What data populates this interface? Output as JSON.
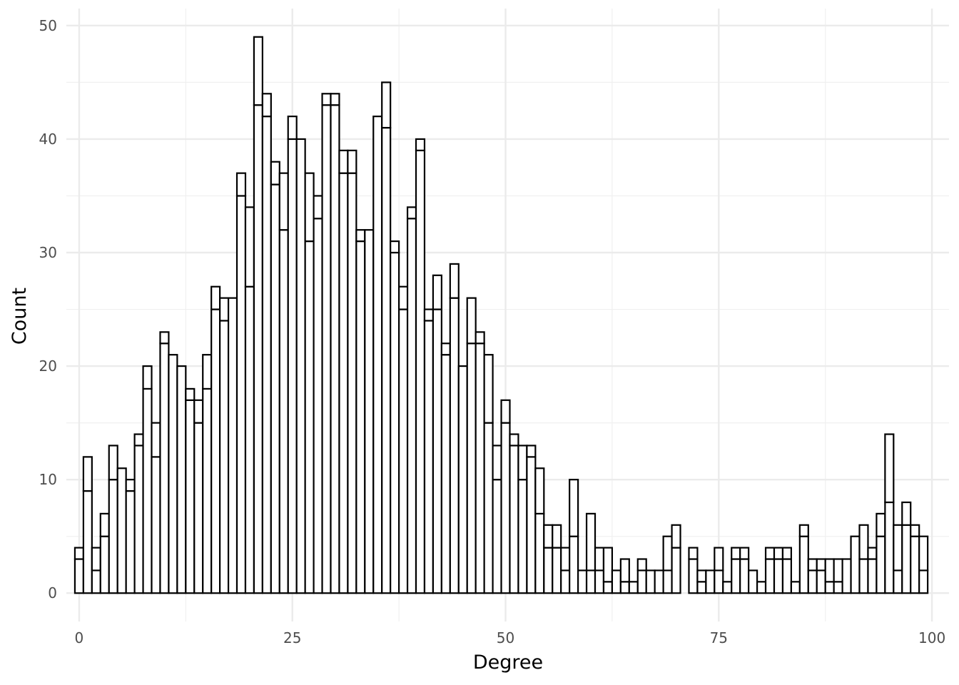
{
  "chart_data": {
    "type": "bar",
    "subtype": "stacked-histogram",
    "title": "",
    "xlabel": "Degree",
    "ylabel": "Count",
    "xlim": [
      -1.5,
      102
    ],
    "ylim": [
      -2.5,
      51.5
    ],
    "x_ticks": [
      0,
      25,
      50,
      75,
      100
    ],
    "y_ticks": [
      0,
      10,
      20,
      30,
      40,
      50
    ],
    "grid": true,
    "legend": "none",
    "bin_width": 1,
    "bins": [
      0,
      1,
      2,
      3,
      4,
      5,
      6,
      7,
      8,
      9,
      10,
      11,
      12,
      13,
      14,
      15,
      16,
      17,
      18,
      19,
      20,
      21,
      22,
      23,
      24,
      25,
      26,
      27,
      28,
      29,
      30,
      31,
      32,
      33,
      34,
      35,
      36,
      37,
      38,
      39,
      40,
      41,
      42,
      43,
      44,
      45,
      46,
      47,
      48,
      49,
      50,
      51,
      52,
      53,
      54,
      55,
      56,
      57,
      58,
      59,
      60,
      61,
      62,
      63,
      64,
      65,
      66,
      67,
      68,
      69,
      70,
      71,
      72,
      73,
      74,
      75,
      76,
      77,
      78,
      79,
      80,
      81,
      82,
      83,
      84,
      85,
      86,
      87,
      88,
      89,
      90,
      91,
      92,
      93,
      94,
      95,
      96,
      97,
      98,
      99
    ],
    "series": [
      {
        "values": [
          3,
          9,
          2,
          5,
          10,
          11,
          9,
          13,
          18,
          12,
          22,
          21,
          20,
          17,
          15,
          18,
          25,
          24,
          26,
          35,
          27,
          43,
          42,
          36,
          32,
          40,
          40,
          31,
          33,
          43,
          43,
          37,
          37,
          31,
          32,
          42,
          41,
          30,
          25,
          33,
          39,
          24,
          25,
          21,
          26,
          20,
          22,
          22,
          15,
          10,
          15,
          13,
          10,
          12,
          7,
          4,
          4,
          2,
          5,
          2,
          2,
          2,
          1,
          2,
          1,
          1,
          2,
          2,
          2,
          2,
          4,
          0,
          3,
          1,
          2,
          2,
          1,
          3,
          3,
          2,
          1,
          3,
          3,
          3,
          1,
          5,
          2,
          2,
          1,
          1,
          3,
          5,
          3,
          3,
          5,
          8,
          2,
          6,
          5,
          2
        ]
      },
      {
        "values": [
          1,
          3,
          2,
          2,
          3,
          0,
          1,
          1,
          2,
          3,
          1,
          0,
          0,
          1,
          2,
          3,
          2,
          2,
          0,
          2,
          7,
          6,
          2,
          2,
          5,
          2,
          0,
          6,
          2,
          1,
          1,
          2,
          2,
          1,
          0,
          0,
          4,
          1,
          2,
          1,
          1,
          1,
          3,
          1,
          3,
          0,
          4,
          1,
          6,
          3,
          2,
          1,
          3,
          1,
          4,
          2,
          2,
          2,
          5,
          0,
          5,
          2,
          3,
          0,
          2,
          0,
          1,
          0,
          0,
          3,
          2,
          0,
          1,
          1,
          0,
          2,
          0,
          1,
          1,
          0,
          0,
          1,
          1,
          1,
          0,
          1,
          1,
          1,
          2,
          2,
          0,
          0,
          3,
          1,
          2,
          6,
          4,
          2,
          1,
          3
        ]
      }
    ]
  }
}
